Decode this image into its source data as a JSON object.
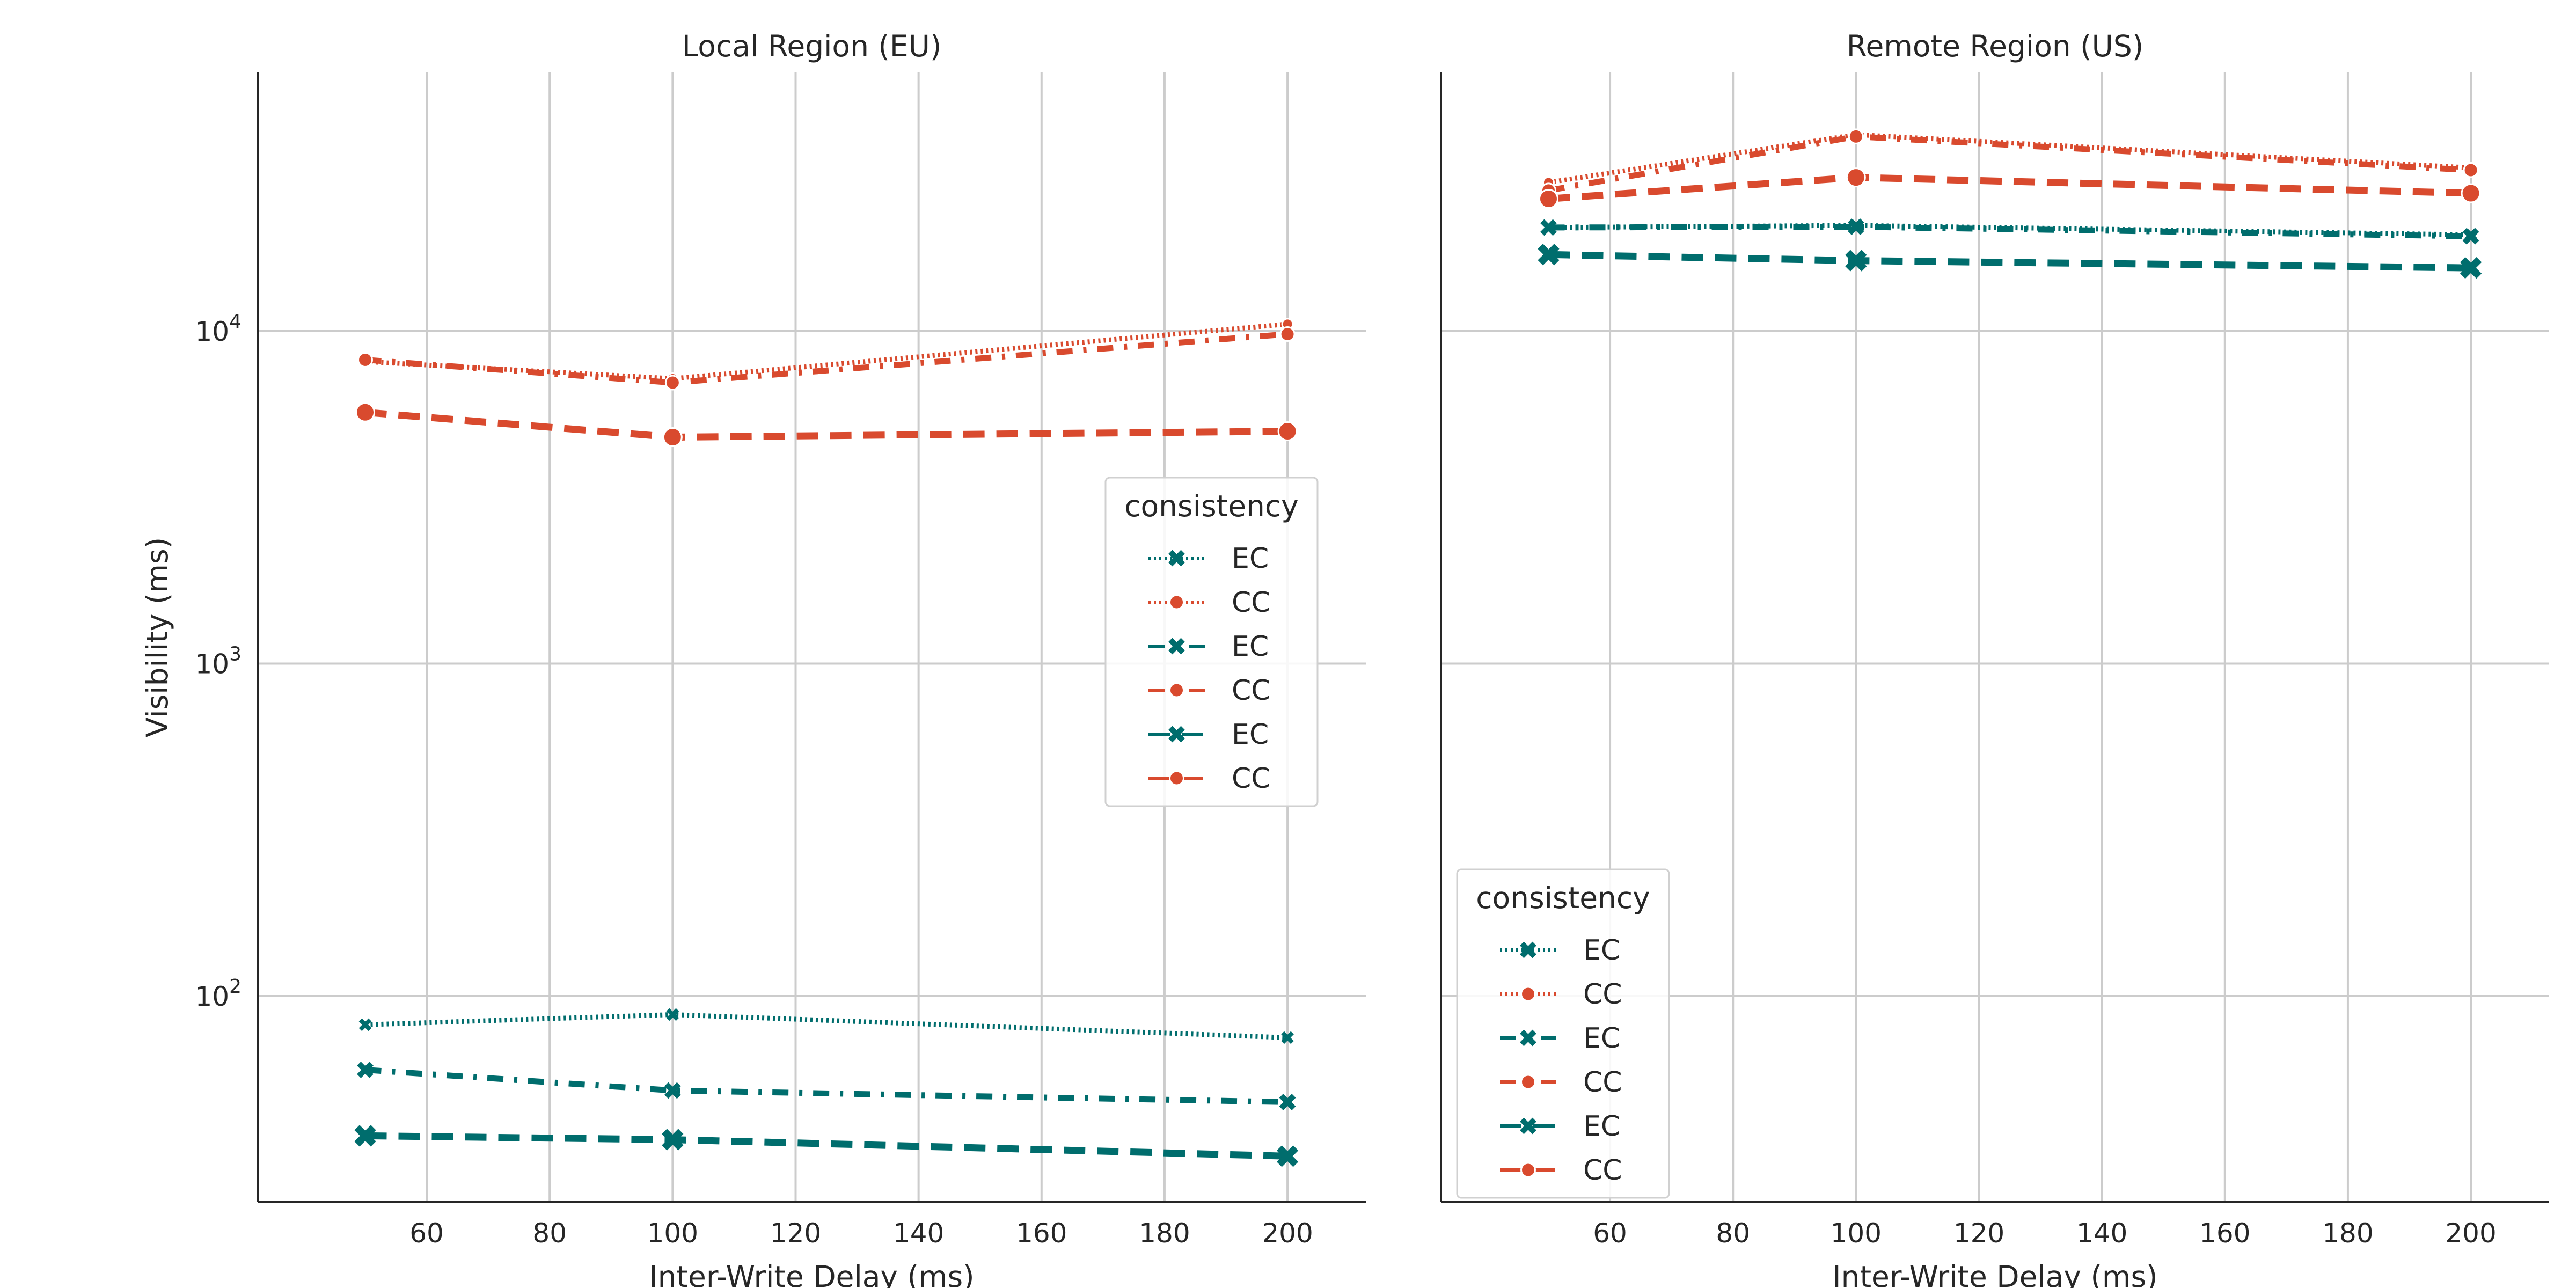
{
  "chart_data": [
    {
      "type": "line",
      "title": "Local Region (EU)",
      "xlabel": "Inter-Write Delay (ms)",
      "ylabel": "Visibility (ms)",
      "yscale": "log",
      "xlim": [
        32.5,
        207.5
      ],
      "ylim": [
        24,
        60000
      ],
      "xticks": [
        60,
        80,
        100,
        120,
        140,
        160,
        180,
        200
      ],
      "yticks": [
        {
          "value": 100,
          "base": "10",
          "exp": "2"
        },
        {
          "value": 1000,
          "base": "10",
          "exp": "3"
        },
        {
          "value": 10000,
          "base": "10",
          "exp": "4"
        }
      ],
      "grid": true,
      "legend": {
        "title": "consistency",
        "position": "center-right"
      },
      "x": [
        50,
        100,
        200
      ],
      "series": [
        {
          "name": "EC",
          "values": [
            82,
            88,
            75
          ],
          "color": "#006d6d",
          "dash": "dotted",
          "marker": "x",
          "size": "small"
        },
        {
          "name": "CC",
          "values": [
            8100,
            7200,
            10500
          ],
          "color": "#d94a2e",
          "dash": "dotted",
          "marker": "circle",
          "size": "small"
        },
        {
          "name": "EC",
          "values": [
            60,
            52,
            48
          ],
          "color": "#006d6d",
          "dash": "dashdot",
          "marker": "x",
          "size": "medium"
        },
        {
          "name": "CC",
          "values": [
            8200,
            7000,
            9800
          ],
          "color": "#d94a2e",
          "dash": "dashdot",
          "marker": "circle",
          "size": "medium"
        },
        {
          "name": "EC",
          "values": [
            38,
            37,
            33
          ],
          "color": "#006d6d",
          "dash": "dashed",
          "marker": "x",
          "size": "large"
        },
        {
          "name": "CC",
          "values": [
            5700,
            4800,
            5000
          ],
          "color": "#d94a2e",
          "dash": "dashed",
          "marker": "circle",
          "size": "large"
        }
      ]
    },
    {
      "type": "line",
      "title": "Remote Region (US)",
      "xlabel": "Inter-Write Delay (ms)",
      "ylabel": "",
      "yscale": "log",
      "xlim": [
        32.5,
        207.5
      ],
      "ylim": [
        24,
        60000
      ],
      "xticks": [
        60,
        80,
        100,
        120,
        140,
        160,
        180,
        200
      ],
      "yticks": [],
      "grid": true,
      "legend": {
        "title": "consistency",
        "position": "lower-left"
      },
      "x": [
        50,
        100,
        200
      ],
      "series": [
        {
          "name": "EC",
          "values": [
            20500,
            20800,
            19500
          ],
          "color": "#006d6d",
          "dash": "dotted",
          "marker": "x",
          "size": "small"
        },
        {
          "name": "CC",
          "values": [
            28000,
            39000,
            31000
          ],
          "color": "#d94a2e",
          "dash": "dotted",
          "marker": "circle",
          "size": "small"
        },
        {
          "name": "EC",
          "values": [
            20500,
            20600,
            19300
          ],
          "color": "#006d6d",
          "dash": "dashdot",
          "marker": "x",
          "size": "medium"
        },
        {
          "name": "CC",
          "values": [
            26500,
            38500,
            30500
          ],
          "color": "#d94a2e",
          "dash": "dashdot",
          "marker": "circle",
          "size": "medium"
        },
        {
          "name": "EC",
          "values": [
            17000,
            16300,
            15500
          ],
          "color": "#006d6d",
          "dash": "dashed",
          "marker": "x",
          "size": "large"
        },
        {
          "name": "CC",
          "values": [
            25000,
            29000,
            26000
          ],
          "color": "#d94a2e",
          "dash": "dashed",
          "marker": "circle",
          "size": "large"
        }
      ]
    }
  ]
}
